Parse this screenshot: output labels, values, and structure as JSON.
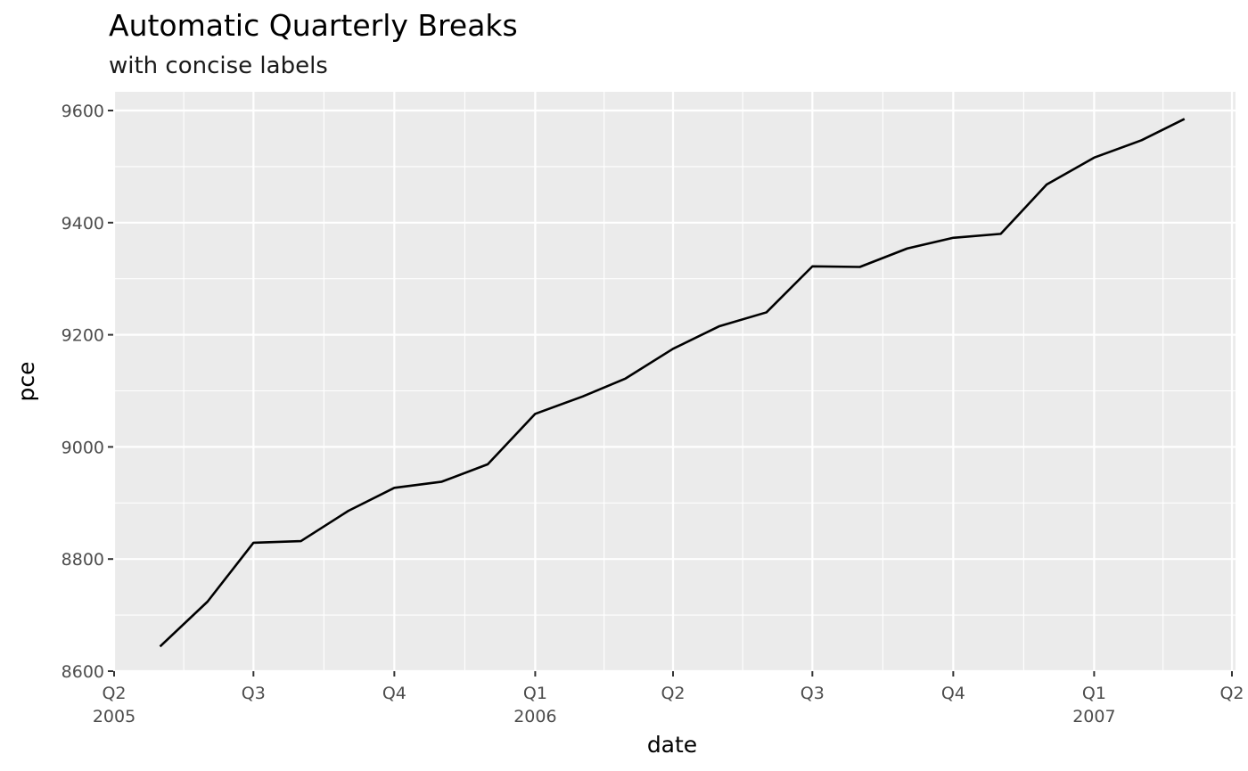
{
  "chart_data": {
    "type": "line",
    "title": "Automatic Quarterly Breaks",
    "subtitle": "with concise labels",
    "xlabel": "date",
    "ylabel": "pce",
    "ylim": [
      8600,
      9600
    ],
    "y_major_ticks": [
      8600,
      8800,
      9000,
      9200,
      9400,
      9600
    ],
    "y_minor_ticks": [
      8700,
      8900,
      9100,
      9300,
      9500
    ],
    "xlim": [
      "2005-04-01",
      "2007-04-01"
    ],
    "x_major_ticks": [
      {
        "date": "2005-04-01",
        "label": "Q2",
        "sublabel": "2005"
      },
      {
        "date": "2005-07-01",
        "label": "Q3",
        "sublabel": ""
      },
      {
        "date": "2005-10-01",
        "label": "Q4",
        "sublabel": ""
      },
      {
        "date": "2006-01-01",
        "label": "Q1",
        "sublabel": "2006"
      },
      {
        "date": "2006-04-01",
        "label": "Q2",
        "sublabel": ""
      },
      {
        "date": "2006-07-01",
        "label": "Q3",
        "sublabel": ""
      },
      {
        "date": "2006-10-01",
        "label": "Q4",
        "sublabel": ""
      },
      {
        "date": "2007-01-01",
        "label": "Q1",
        "sublabel": "2007"
      },
      {
        "date": "2007-04-01",
        "label": "Q2",
        "sublabel": ""
      }
    ],
    "grid": true,
    "series": [
      {
        "line_color": "#000000",
        "points": [
          {
            "x": "2005-05-01",
            "y": 8644
          },
          {
            "x": "2005-06-01",
            "y": 8724
          },
          {
            "x": "2005-07-01",
            "y": 8829
          },
          {
            "x": "2005-08-01",
            "y": 8832
          },
          {
            "x": "2005-09-01",
            "y": 8886
          },
          {
            "x": "2005-10-01",
            "y": 8927
          },
          {
            "x": "2005-11-01",
            "y": 8938
          },
          {
            "x": "2005-12-01",
            "y": 8969
          },
          {
            "x": "2006-01-01",
            "y": 9059
          },
          {
            "x": "2006-02-01",
            "y": 9090
          },
          {
            "x": "2006-03-01",
            "y": 9122
          },
          {
            "x": "2006-04-01",
            "y": 9175
          },
          {
            "x": "2006-05-01",
            "y": 9215
          },
          {
            "x": "2006-06-01",
            "y": 9240
          },
          {
            "x": "2006-07-01",
            "y": 9322
          },
          {
            "x": "2006-08-01",
            "y": 9321
          },
          {
            "x": "2006-09-01",
            "y": 9354
          },
          {
            "x": "2006-10-01",
            "y": 9373
          },
          {
            "x": "2006-11-01",
            "y": 9380
          },
          {
            "x": "2006-12-01",
            "y": 9468
          },
          {
            "x": "2007-01-01",
            "y": 9516
          },
          {
            "x": "2007-02-01",
            "y": 9547
          },
          {
            "x": "2007-03-01",
            "y": 9585
          }
        ]
      }
    ]
  }
}
